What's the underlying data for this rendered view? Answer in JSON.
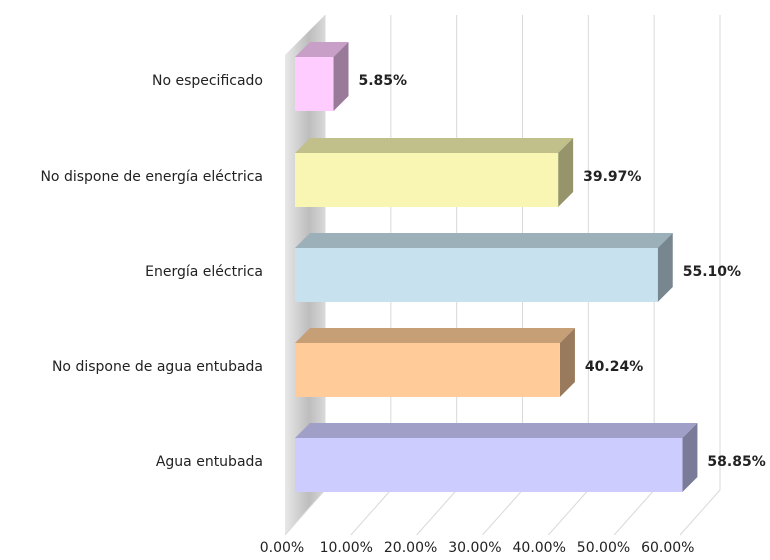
{
  "chart_data": {
    "type": "bar3d_horizontal",
    "categories": [
      "No especificado",
      "No dispone de energía eléctrica",
      "Energía eléctrica",
      "No dispone de agua entubada",
      "Agua entubada"
    ],
    "values": [
      5.85,
      39.97,
      55.1,
      40.24,
      58.85
    ],
    "value_labels": [
      "5.85%",
      "39.97%",
      "55.10%",
      "40.24%",
      "58.85%"
    ],
    "colors": [
      "#FFCCFF",
      "#F8F6B2",
      "#C8E1EF",
      "#FFCC99",
      "#CCCCFF"
    ],
    "xlim": [
      0,
      60
    ],
    "xticks": [
      {
        "value": 0,
        "label": "0.00%"
      },
      {
        "value": 10,
        "label": "10.00%"
      },
      {
        "value": 20,
        "label": "20.00%"
      },
      {
        "value": 30,
        "label": "30.00%"
      },
      {
        "value": 40,
        "label": "40.00%"
      },
      {
        "value": 50,
        "label": "50.00%"
      },
      {
        "value": 60,
        "label": "60.00%"
      }
    ],
    "grid": true
  }
}
